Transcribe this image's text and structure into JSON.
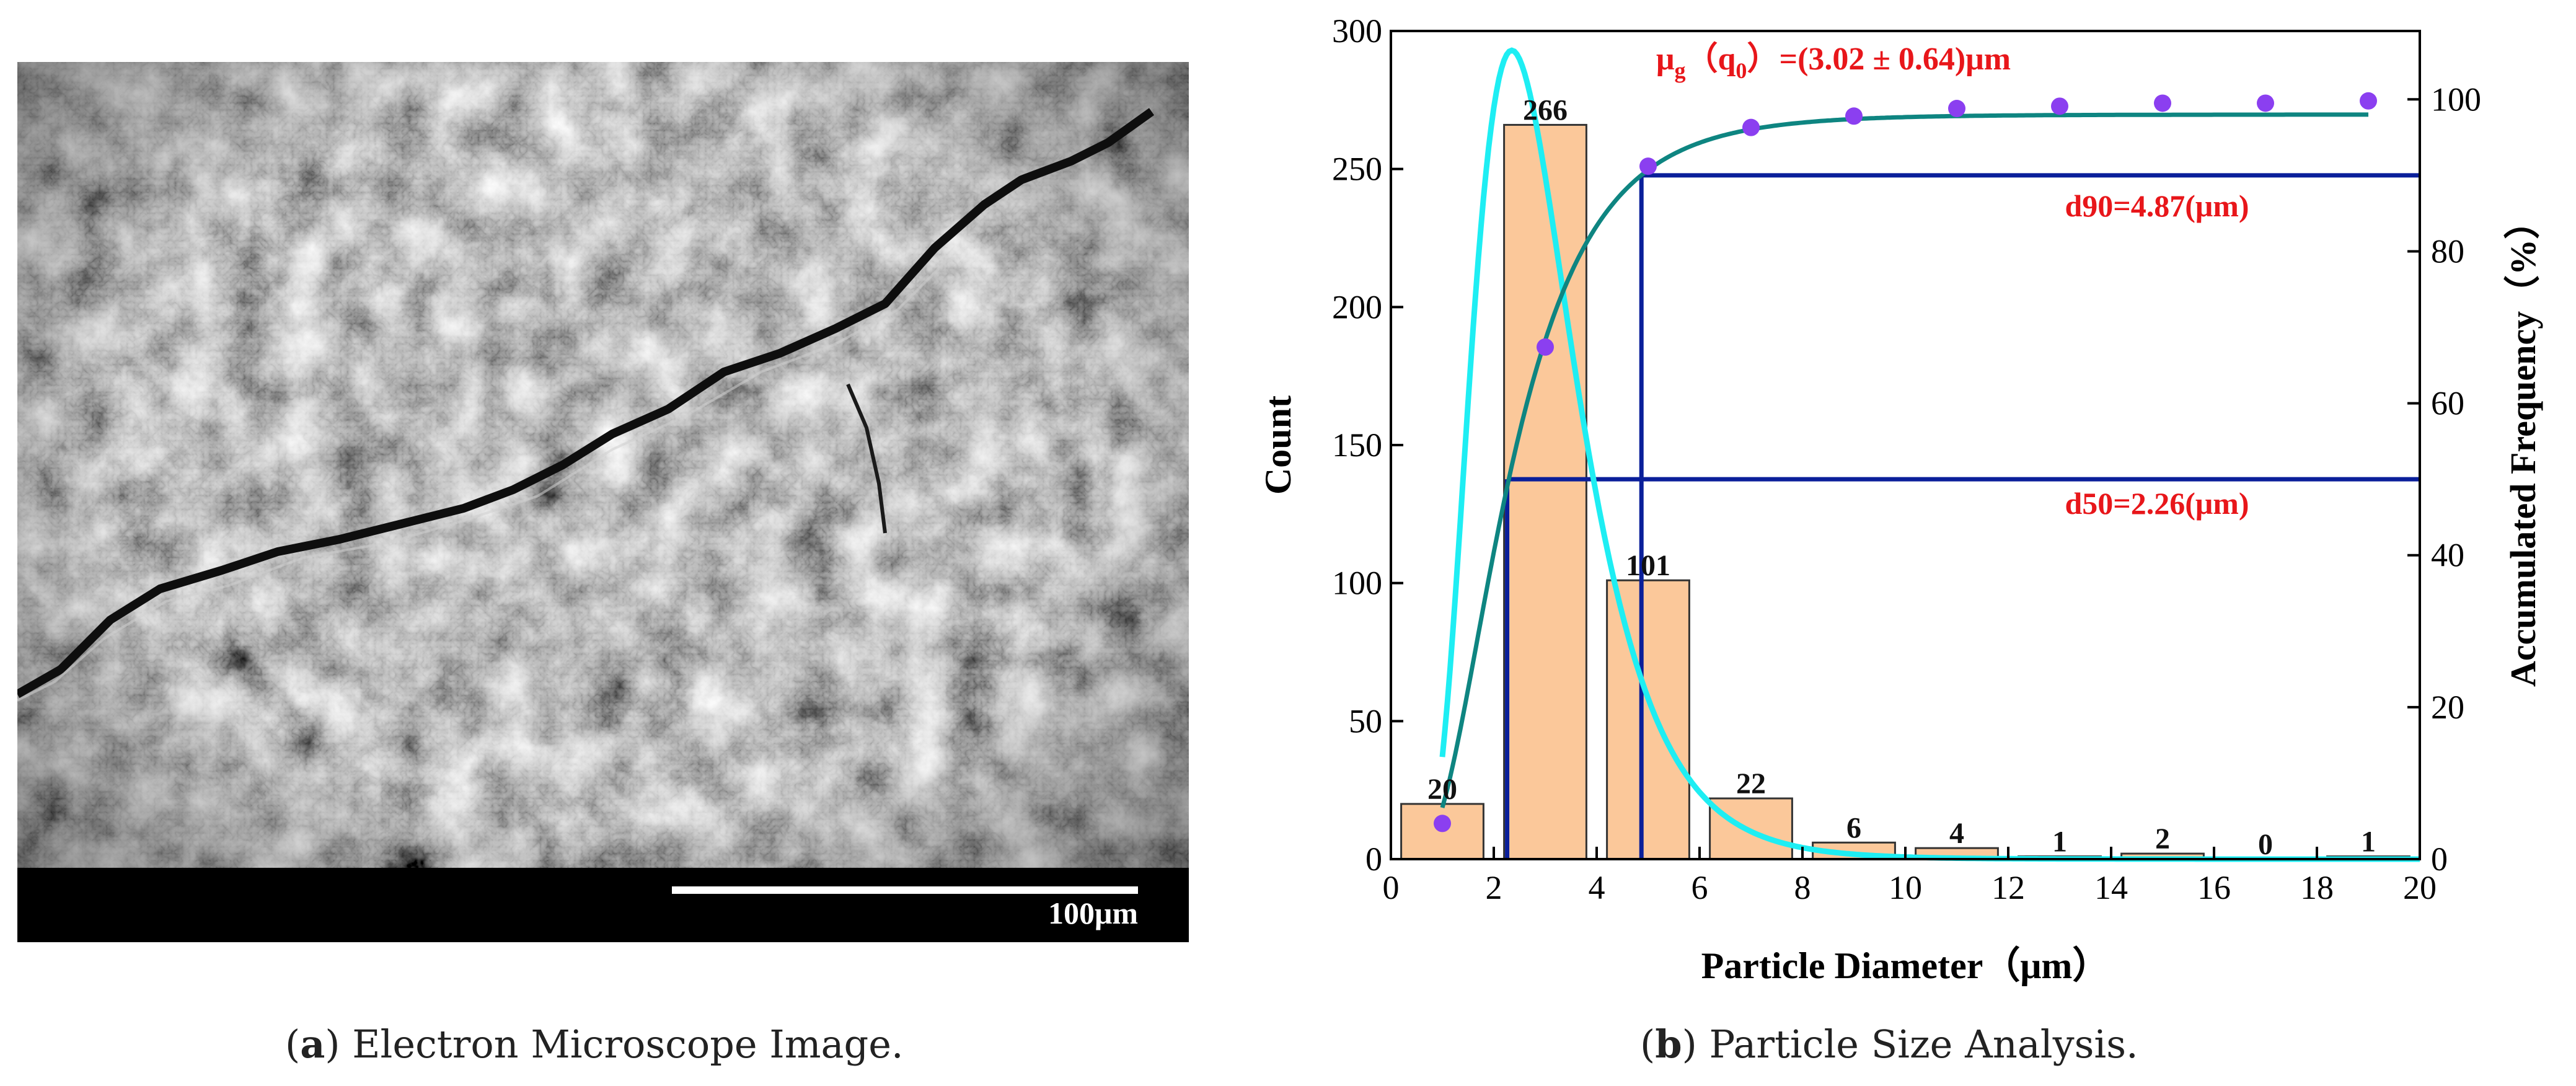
{
  "panel_a": {
    "scale_bar_label": "100μm",
    "caption_letter": "a",
    "caption_text": "Electron Microscope Image."
  },
  "panel_b": {
    "caption_letter": "b",
    "caption_text": "Particle Size Analysis."
  },
  "colors": {
    "bar_fill": "#FBC89A",
    "bar_stroke": "#333333",
    "lognormal_curve": "#1EEEF3",
    "cumulative_curve": "#0E8581",
    "cumulative_points": "#8B3FF0",
    "percentile_lines": "#0A1F9A",
    "annotation_text": "#E8161A"
  },
  "chart_data": {
    "type": "bar",
    "title": "",
    "xlabel": "Particle Diameter（μm）",
    "ylabel": "Count",
    "ylabel_right": "Accumulated Frequency（%）",
    "xlim": [
      0,
      20
    ],
    "ylim": [
      0,
      300
    ],
    "ylim_right": [
      0,
      109
    ],
    "x_ticks": [
      0,
      2,
      4,
      6,
      8,
      10,
      12,
      14,
      16,
      18,
      20
    ],
    "y_ticks": [
      0,
      50,
      100,
      150,
      200,
      250,
      300
    ],
    "y_right_ticks": [
      0,
      20,
      40,
      60,
      80,
      100
    ],
    "bin_width": 2,
    "bin_centers": [
      1,
      3,
      5,
      7,
      9,
      11,
      13,
      15,
      17,
      19
    ],
    "counts": [
      20,
      266,
      101,
      22,
      6,
      4,
      1,
      2,
      0,
      1
    ],
    "bar_labels": [
      "20",
      "266",
      "101",
      "22",
      "6",
      "4",
      "1",
      "2",
      "0",
      "1"
    ],
    "cumulative": {
      "x": [
        1,
        3,
        5,
        7,
        9,
        11,
        13,
        15,
        17,
        19
      ],
      "y": [
        4.7,
        67.4,
        91.2,
        96.3,
        97.8,
        98.8,
        99.1,
        99.5,
        99.5,
        99.8
      ]
    },
    "lognormal_fit": {
      "median": 3.02,
      "sigma_log": 0.42,
      "peak_x": 2.35,
      "peak_count": 293
    },
    "cumulative_fit": {
      "median": 2.26,
      "sigma_log": 0.55,
      "plateau": 98
    },
    "percentiles": [
      {
        "label": "d50=2.26(μm)",
        "x": 2.26,
        "percent": 50
      },
      {
        "label": "d90=4.87(μm)",
        "x": 4.87,
        "percent": 90
      }
    ],
    "mean_annotation": {
      "mu": "μ",
      "mu_sub": "g",
      "paren_open": "（",
      "q": "q",
      "q_sub": "0",
      "paren_close": "）",
      "value": "=(3.02 ± 0.64)μm"
    }
  }
}
